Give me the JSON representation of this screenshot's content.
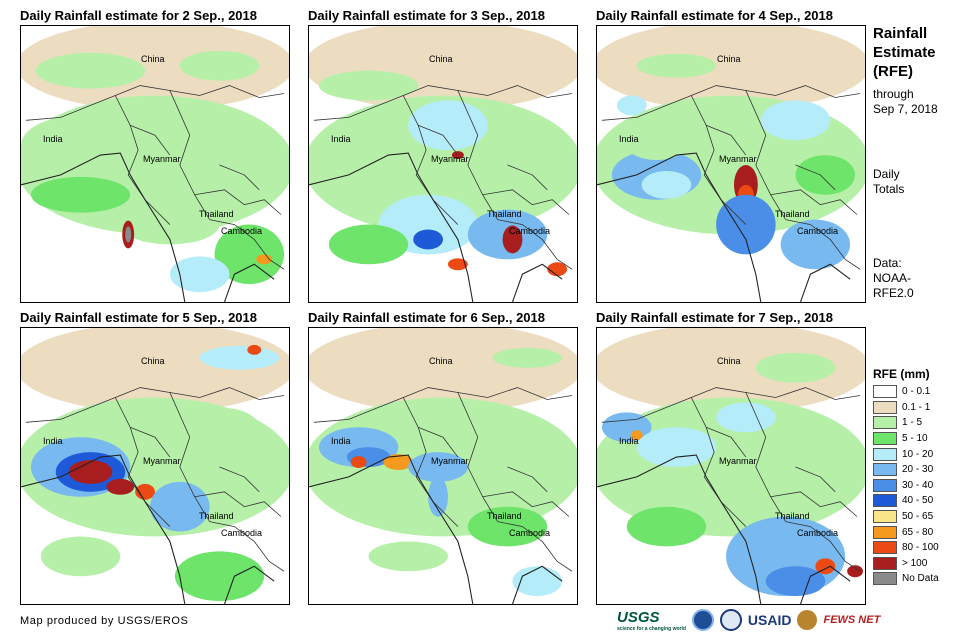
{
  "panels": [
    {
      "title": "Daily Rainfall estimate for 2 Sep., 2018",
      "date": "2 Sep., 2018"
    },
    {
      "title": "Daily Rainfall estimate for 3 Sep., 2018",
      "date": "3 Sep., 2018"
    },
    {
      "title": "Daily Rainfall estimate for 4 Sep., 2018",
      "date": "4 Sep., 2018"
    },
    {
      "title": "Daily Rainfall estimate for 5 Sep., 2018",
      "date": "5 Sep., 2018"
    },
    {
      "title": "Daily Rainfall estimate for 6 Sep., 2018",
      "date": "6 Sep., 2018"
    },
    {
      "title": "Daily Rainfall estimate for 7 Sep., 2018",
      "date": "7 Sep., 2018"
    }
  ],
  "places": {
    "china": "China",
    "india": "India",
    "myanmar": "Myanmar",
    "thailand": "Thailand",
    "cambodia": "Cambodia"
  },
  "sidebar": {
    "title_line1": "Rainfall",
    "title_line2": "Estimate",
    "title_line3": "(RFE)",
    "through_line1": "through",
    "through_line2": "Sep 7, 2018",
    "daily_line1": "Daily",
    "daily_line2": "Totals",
    "data_line1": "Data:",
    "data_line2": "NOAA-",
    "data_line3": "RFE2.0"
  },
  "legend": {
    "title": "RFE (mm)",
    "classes": [
      {
        "label": "0 - 0.1",
        "color": "#ffffff"
      },
      {
        "label": "0.1 - 1",
        "color": "#ecdcc0"
      },
      {
        "label": "1 - 5",
        "color": "#b6f0a8"
      },
      {
        "label": "5 - 10",
        "color": "#6ee46a"
      },
      {
        "label": "10 - 20",
        "color": "#b4ecfa"
      },
      {
        "label": "20 - 30",
        "color": "#78baf0"
      },
      {
        "label": "30 - 40",
        "color": "#4a8ee8"
      },
      {
        "label": "40 - 50",
        "color": "#1e5ad8"
      },
      {
        "label": "50 - 65",
        "color": "#fae68a"
      },
      {
        "label": "65 - 80",
        "color": "#f59a1e"
      },
      {
        "label": "80 - 100",
        "color": "#ec4a14"
      },
      {
        "label": "> 100",
        "color": "#a81e1e"
      },
      {
        "label": "No Data",
        "color": "#8a8a8a"
      }
    ]
  },
  "footer": {
    "credit": "Map produced by USGS/EROS",
    "logo_usgs": "USGS",
    "logo_usgs_tagline": "science for a changing world",
    "logo_usaid": "USAID",
    "logo_fews": "FEWS NET"
  }
}
